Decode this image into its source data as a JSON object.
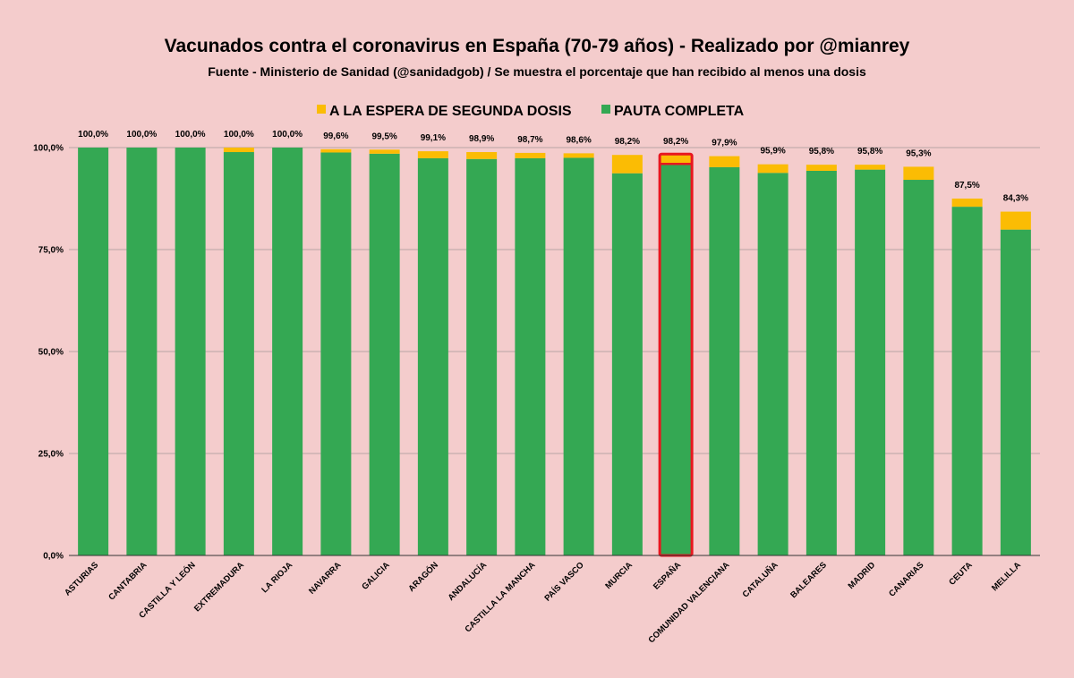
{
  "chart_data": {
    "type": "bar",
    "stacked": true,
    "title": "Vacunados contra el coronavirus en España (70-79 años) - Realizado por @mianrey",
    "subtitle": "Fuente - Ministerio de Sanidad (@sanidadgob) / Se muestra el porcentaje que han recibido al menos una dosis",
    "legend_position": "top",
    "grid": true,
    "ylim": [
      0,
      100
    ],
    "yticks": [
      0,
      25,
      50,
      75,
      100
    ],
    "ytick_labels": [
      "0,0%",
      "25,0%",
      "50,0%",
      "75,0%",
      "100,0%"
    ],
    "categories": [
      "ASTURIAS",
      "CANTABRIA",
      "CASTILLA Y LEÓN",
      "EXTREMADURA",
      "LA RIOJA",
      "NAVARRA",
      "GALICIA",
      "ARAGÓN",
      "ANDALUCÍA",
      "CASTILLA LA MANCHA",
      "PAÍS VASCO",
      "MURCIA",
      "ESPAÑA",
      "COMUNIDAD VALENCIANA",
      "CATALUÑA",
      "BALEARES",
      "MADRID",
      "CANARIAS",
      "CEUTA",
      "MELILLA"
    ],
    "series": [
      {
        "name": "PAUTA COMPLETA",
        "color": "#34a853",
        "values": [
          100.0,
          100.0,
          100.0,
          98.9,
          100.0,
          98.8,
          98.5,
          97.4,
          97.2,
          97.4,
          97.5,
          93.7,
          96.0,
          95.2,
          93.8,
          94.3,
          94.6,
          92.1,
          85.5,
          79.9
        ]
      },
      {
        "name": "A LA ESPERA DE SEGUNDA DOSIS",
        "color": "#fbbc04",
        "values": [
          0.0,
          0.0,
          0.0,
          1.1,
          0.0,
          0.8,
          1.0,
          1.7,
          1.7,
          1.3,
          1.1,
          4.5,
          2.2,
          2.7,
          2.1,
          1.5,
          1.2,
          3.2,
          2.0,
          4.4
        ]
      }
    ],
    "totals": [
      100.0,
      100.0,
      100.0,
      100.0,
      100.0,
      99.6,
      99.5,
      99.1,
      98.9,
      98.7,
      98.6,
      98.2,
      98.2,
      97.9,
      95.9,
      95.8,
      95.8,
      95.3,
      87.5,
      84.3
    ],
    "total_labels": [
      "100,0%",
      "100,0%",
      "100,0%",
      "100,0%",
      "100,0%",
      "99,6%",
      "99,5%",
      "99,1%",
      "98,9%",
      "98,7%",
      "98,6%",
      "98,2%",
      "98,2%",
      "97,9%",
      "95,9%",
      "95,8%",
      "95,8%",
      "95,3%",
      "87,5%",
      "84,3%"
    ],
    "highlight_category": "ESPAÑA",
    "highlight_color": "#e8171f",
    "legend": [
      {
        "label": "A LA ESPERA DE SEGUNDA DOSIS",
        "color": "#fbbc04"
      },
      {
        "label": "PAUTA COMPLETA",
        "color": "#34a853"
      }
    ]
  }
}
